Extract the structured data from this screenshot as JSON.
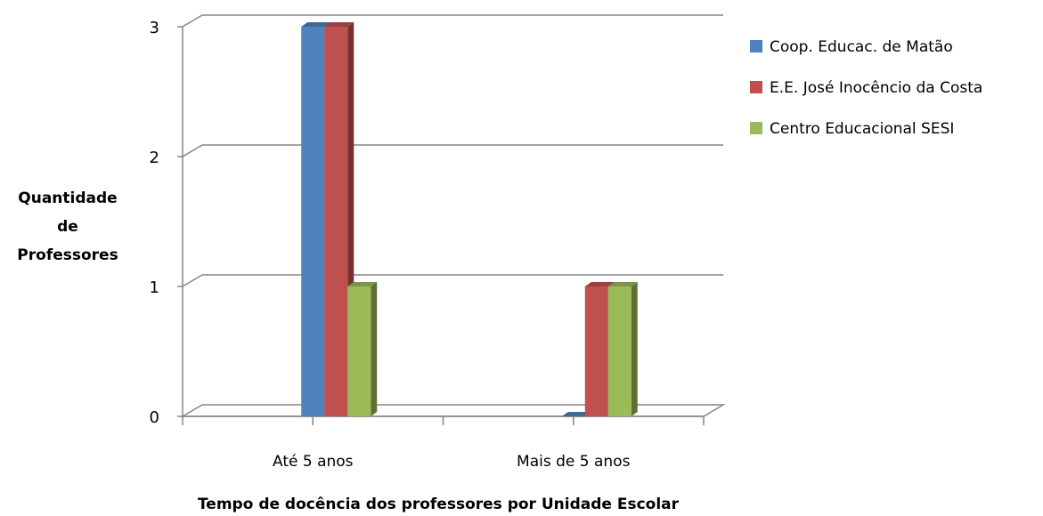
{
  "chart_data": {
    "type": "bar",
    "categories": [
      "Até 5 anos",
      "Mais de 5 anos"
    ],
    "series": [
      {
        "name": "Coop. Educac. de Matão",
        "values": [
          3,
          0
        ],
        "color": "#4F81BD"
      },
      {
        "name": "E.E. José Inocêncio da Costa",
        "values": [
          3,
          1
        ],
        "color": "#C0504D"
      },
      {
        "name": "Centro Educacional SESI",
        "values": [
          1,
          1
        ],
        "color": "#9BBB59"
      }
    ],
    "title": "",
    "xlabel": "Tempo de docência dos professores por Unidade Escolar",
    "ylabel": [
      "Quantidade",
      "de",
      "Professores"
    ],
    "ylim": [
      0,
      3
    ],
    "yticks": [
      "0",
      "1",
      "2",
      "3"
    ],
    "grid": true,
    "legend": "right",
    "style": "3d"
  }
}
